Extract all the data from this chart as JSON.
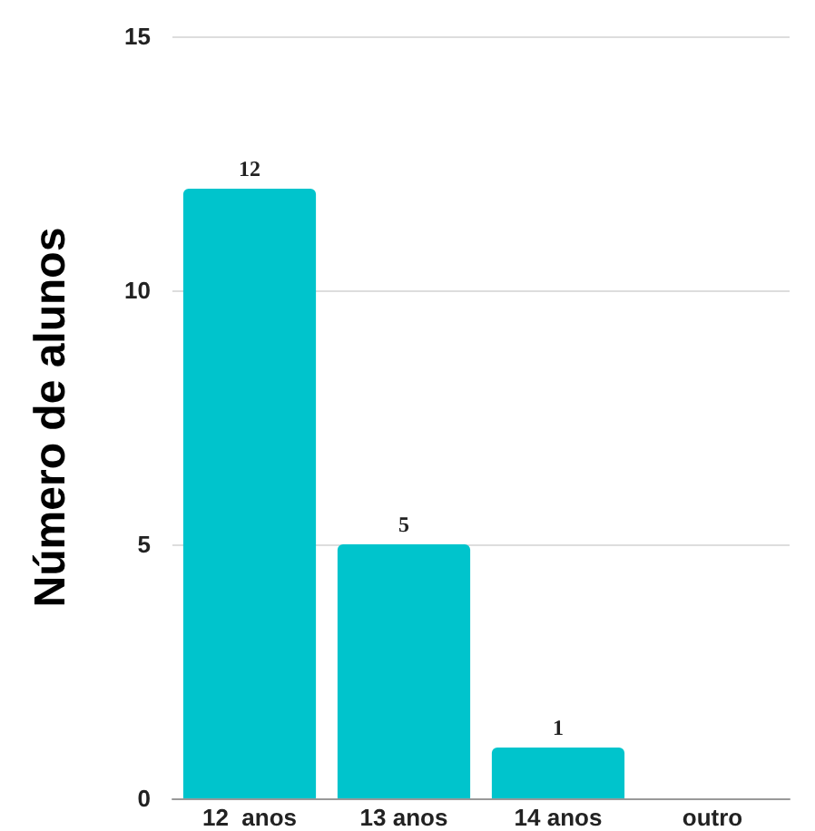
{
  "chart_data": {
    "type": "bar",
    "ylabel": "Número de alunos",
    "categories": [
      "12  anos",
      "13 anos",
      "14 anos",
      "outro"
    ],
    "values": [
      12,
      5,
      1,
      0
    ],
    "color": "#00c4cc",
    "value_labels": [
      "12",
      "5",
      "1",
      null
    ],
    "ylim": [
      0,
      15
    ],
    "yticks": [
      0,
      5,
      10,
      15
    ],
    "grid": "y"
  }
}
